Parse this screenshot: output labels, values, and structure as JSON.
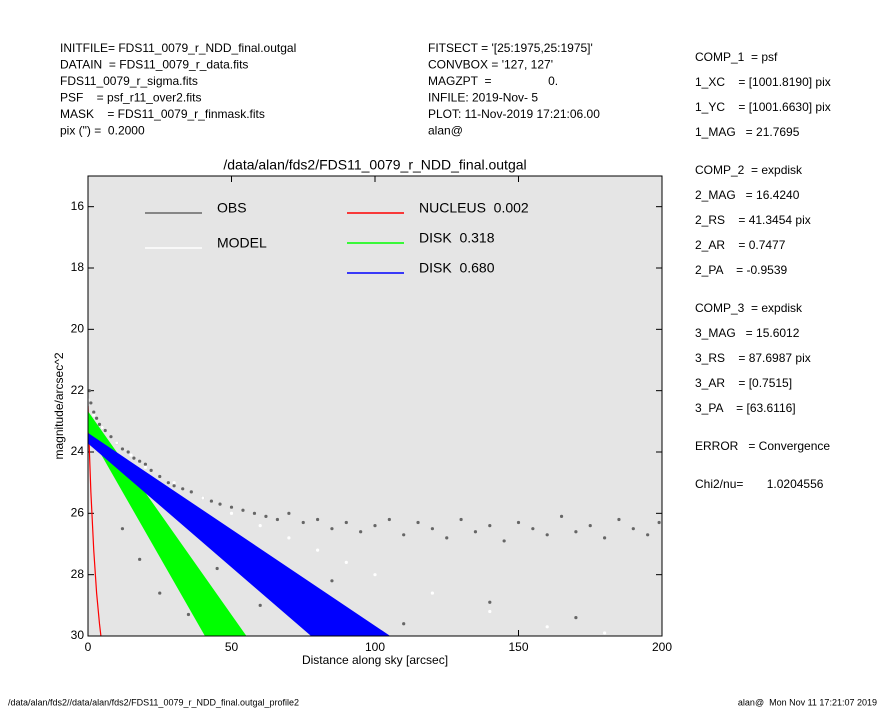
{
  "header": {
    "left": [
      "INITFILE= FDS11_0079_r_NDD_final.outgal",
      "DATAIN  = FDS11_0079_r_data.fits",
      "FDS11_0079_r_sigma.fits",
      "PSF    = psf_r11_over2.fits",
      "MASK    = FDS11_0079_r_finmask.fits",
      "pix (\") =  0.2000"
    ],
    "middle": [
      "FITSECT = '[25:1975,25:1975]'",
      "CONVBOX = '127, 127'",
      "MAGZPT  =                 0.",
      "INFILE: 2019-Nov- 5",
      "PLOT: 11-Nov-2019 17:21:06.00",
      "alan@"
    ]
  },
  "panel": [
    [
      "COMP_1  = psf",
      "1_XC    = [1001.8190] pix",
      "1_YC    = [1001.6630] pix",
      "1_MAG   = 21.7695"
    ],
    [
      "COMP_2  = expdisk",
      "2_MAG   = 16.4240",
      "2_RS    = 41.3454 pix",
      "2_AR    = 0.7477",
      "2_PA    = -0.9539"
    ],
    [
      "COMP_3  = expdisk",
      "3_MAG   = 15.6012",
      "3_RS    = 87.6987 pix",
      "3_AR    = [0.7515]",
      "3_PA    = [63.6116]"
    ],
    [
      "ERROR   = Convergence"
    ],
    [
      "Chi2/nu=       1.0204556"
    ]
  ],
  "footer": {
    "left": "/data/alan/fds2//data/alan/fds2/FDS11_0079_r_NDD_final.outgal_profile2",
    "right": "alan@  Mon Nov 11 17:21:07 2019"
  },
  "chart_data": {
    "type": "scatter",
    "title": "/data/alan/fds2/FDS11_0079_r_NDD_final.outgal",
    "x_label": "Distance along sky [arcsec]",
    "y_label": "magnitude/arcsec^2",
    "xlim": [
      0,
      200
    ],
    "ylim": [
      30,
      15
    ],
    "xticks": [
      0,
      50,
      100,
      150,
      200
    ],
    "yticks": [
      16,
      18,
      20,
      22,
      24,
      26,
      28,
      30
    ],
    "background": "#e5e5e5",
    "series": [
      {
        "name": "OBS",
        "color": "#666666",
        "kind": "points",
        "x": [
          0.5,
          1,
          2,
          3,
          4,
          5,
          6,
          8,
          10,
          12,
          14,
          16,
          18,
          20,
          22,
          25,
          28,
          30,
          33,
          36,
          40,
          43,
          46,
          50,
          54,
          58,
          62,
          66,
          70,
          75,
          80,
          85,
          90,
          95,
          100,
          105,
          110,
          115,
          120,
          125,
          130,
          135,
          140,
          145,
          150,
          155,
          160,
          165,
          170,
          175,
          180,
          185,
          190,
          195,
          199,
          12,
          18,
          25,
          35,
          45,
          60,
          85,
          110,
          140,
          170
        ],
        "values": [
          22.0,
          22.4,
          22.7,
          22.9,
          23.1,
          23.2,
          23.3,
          23.5,
          23.7,
          23.9,
          24.0,
          24.2,
          24.3,
          24.4,
          24.6,
          24.8,
          25.0,
          25.1,
          25.2,
          25.3,
          25.5,
          25.6,
          25.7,
          25.8,
          25.9,
          26.0,
          26.1,
          26.2,
          26.0,
          26.3,
          26.2,
          26.5,
          26.3,
          26.6,
          26.4,
          26.2,
          26.7,
          26.3,
          26.5,
          26.8,
          26.2,
          26.6,
          26.4,
          26.9,
          26.3,
          26.5,
          26.7,
          26.1,
          26.6,
          26.4,
          26.8,
          26.2,
          26.5,
          26.7,
          26.3,
          26.5,
          27.5,
          28.6,
          29.3,
          27.8,
          29.0,
          28.2,
          29.6,
          28.9,
          29.4
        ]
      },
      {
        "name": "MODEL",
        "color": "#ffffff",
        "kind": "points",
        "x": [
          0,
          2,
          5,
          10,
          15,
          20,
          30,
          40,
          50,
          60,
          70,
          80,
          90,
          100,
          120,
          140,
          160,
          180,
          200
        ],
        "values": [
          22.3,
          22.8,
          23.2,
          23.7,
          24.1,
          24.5,
          25.0,
          25.5,
          26.0,
          26.4,
          26.8,
          27.2,
          27.6,
          28.0,
          28.6,
          29.2,
          29.7,
          29.9,
          30.0
        ]
      },
      {
        "name": "NUCLEUS  0.002",
        "color": "#ff0000",
        "kind": "line",
        "x": [
          0,
          0.5,
          1,
          2,
          3,
          4,
          4.5
        ],
        "values": [
          22.5,
          24,
          25.3,
          27.2,
          28.6,
          29.6,
          30
        ]
      },
      {
        "name": "DISK  0.318",
        "color": "#00ff00",
        "kind": "band",
        "x": [
          0,
          55
        ],
        "low": [
          22.7,
          30
        ],
        "high": [
          23.3,
          32.3
        ]
      },
      {
        "name": "DISK  0.680",
        "color": "#0000ff",
        "kind": "band",
        "x": [
          0,
          105
        ],
        "low": [
          23.4,
          30
        ],
        "high": [
          23.7,
          32.18
        ]
      }
    ]
  }
}
